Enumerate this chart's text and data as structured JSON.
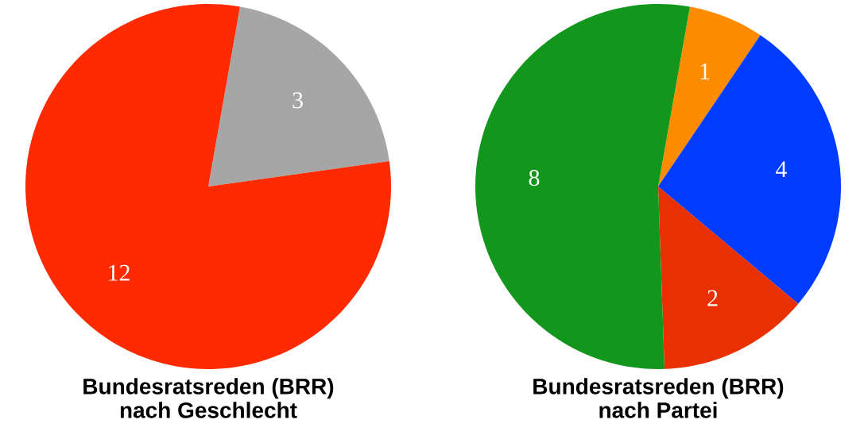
{
  "chart_data": [
    {
      "type": "pie",
      "title": "Bundesratsreden (BRR) nach Geschlecht",
      "categories": [
        null,
        null
      ],
      "values": [
        3,
        12
      ],
      "colors": [
        "#a6a6a6",
        "#ff2a00"
      ],
      "data_labels": true
    },
    {
      "type": "pie",
      "title": "Bundesratsreden (BRR) nach Partei",
      "categories": [
        null,
        null,
        null,
        null
      ],
      "values": [
        1,
        4,
        2,
        8
      ],
      "colors": [
        "#ff8c00",
        "#003cff",
        "#e83000",
        "#12961c"
      ],
      "data_labels": true
    }
  ]
}
